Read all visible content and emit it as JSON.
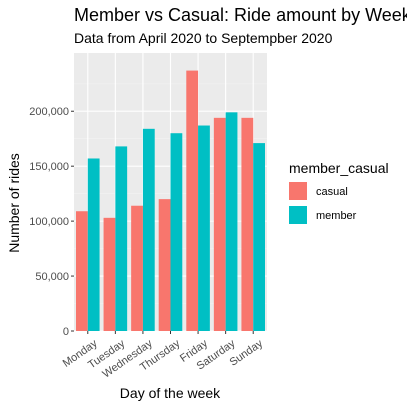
{
  "colors": {
    "panel_background": "#ebebeb",
    "grid_major": "#ffffff",
    "grid_minor": "#f2f2f2",
    "tick_text": "#4d4d4d",
    "casual": "#f8766d",
    "member": "#00bfc4"
  },
  "chart_data": {
    "type": "bar",
    "title": "Member vs Casual: Ride amount by Weekday",
    "subtitle": "Data from April 2020 to Septempber 2020",
    "xlabel": "Day of the week",
    "ylabel": "Number of rides",
    "categories": [
      "Monday",
      "Tuesday",
      "Wednesday",
      "Thursday",
      "Friday",
      "Saturday",
      "Sunday"
    ],
    "series": [
      {
        "name": "casual",
        "color": "#f8766d",
        "values": [
          109000,
          103000,
          114000,
          120000,
          237000,
          194000,
          194000
        ]
      },
      {
        "name": "member",
        "color": "#00bfc4",
        "values": [
          157000,
          168000,
          184000,
          180000,
          187000,
          199000,
          171000
        ]
      }
    ],
    "ylim": [
      0,
      253000
    ],
    "yticks": [
      0,
      50000,
      100000,
      150000,
      200000
    ],
    "ytick_labels": [
      "0",
      "50,000",
      "100,000",
      "150,000",
      "200,000"
    ],
    "legend": {
      "title": "member_casual",
      "position": "right",
      "items": [
        "casual",
        "member"
      ]
    },
    "grid": true,
    "x_tick_rotation_deg": 35
  }
}
